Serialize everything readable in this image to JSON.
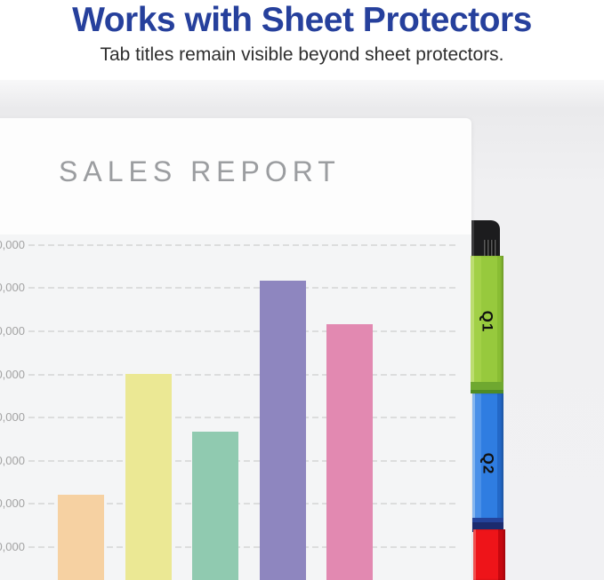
{
  "hero": {
    "title": "Works with Sheet Protectors",
    "subtitle": "Tab titles remain visible beyond sheet protectors.",
    "title_color": "#26409c"
  },
  "report": {
    "title": "SALES REPORT"
  },
  "chart_data": {
    "type": "bar",
    "title": "SALES REPORT",
    "x_axis_labels_visible": false,
    "y_axis_labels_truncated": true,
    "grid": "dashed horizontal gridlines",
    "ylim": [
      0,
      85000
    ],
    "plot_background": "#f4f5f6",
    "gridline_color": "#dcdddd",
    "tick_label_color": "#a3a3a3",
    "y_ticks": [
      {
        "value": 80000,
        "label": "0,000"
      },
      {
        "value": 70000,
        "label": "0,000"
      },
      {
        "value": 60000,
        "label": "0,000"
      },
      {
        "value": 50000,
        "label": "0,000"
      },
      {
        "value": 40000,
        "label": "0,000"
      },
      {
        "value": 30000,
        "label": "0,000"
      },
      {
        "value": 20000,
        "label": "0,000"
      },
      {
        "value": 10000,
        "label": "0,000"
      }
    ],
    "values": [
      22000,
      50000,
      36600,
      71500,
      61500
    ],
    "bar_colors": [
      "#f6d1a2",
      "#ebe894",
      "#90cab0",
      "#8e86bf",
      "#e289b1"
    ]
  },
  "tabs": [
    {
      "label": "Q1",
      "color": "#97c93d"
    },
    {
      "label": "Q2",
      "color": "#2f7de1"
    },
    {
      "label": "",
      "color": "#ee1419"
    }
  ]
}
